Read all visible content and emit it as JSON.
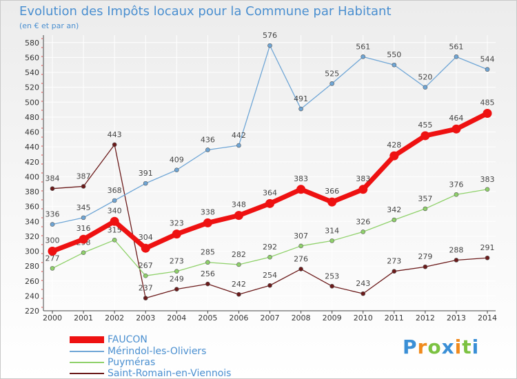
{
  "header": {
    "title": "Evolution des Impôts locaux pour la Commune par Habitant",
    "subtitle": "(en € et par an)"
  },
  "brand": {
    "text": "Proxiti"
  },
  "chart_data": {
    "type": "line",
    "title": "Evolution des Impôts locaux pour la Commune par Habitant",
    "subtitle": "(en € et par an)",
    "xlabel": "",
    "ylabel": "",
    "ylim": [
      220,
      590
    ],
    "yticks": [
      220,
      240,
      260,
      280,
      300,
      320,
      340,
      360,
      380,
      400,
      420,
      440,
      460,
      480,
      500,
      520,
      540,
      560,
      580
    ],
    "grid": true,
    "legend_position": "bottom-left",
    "x": [
      "2000",
      "2001",
      "2002",
      "2003",
      "2004",
      "2005",
      "2006",
      "2007",
      "2008",
      "2009",
      "2010",
      "2011",
      "2012",
      "2013",
      "2014"
    ],
    "series": [
      {
        "name": "Saint-Romain-en-Viennois",
        "color": "#6b1a1a",
        "values": [
          384,
          387,
          443,
          237,
          249,
          256,
          242,
          254,
          276,
          253,
          243,
          273,
          279,
          288,
          291
        ]
      },
      {
        "name": "Puyméras",
        "color": "#8fd16a",
        "values": [
          277,
          298,
          315,
          267,
          273,
          285,
          282,
          292,
          307,
          314,
          326,
          342,
          357,
          376,
          383
        ]
      },
      {
        "name": "Mérindol-les-Oliviers",
        "color": "#6fa6d6",
        "values": [
          336,
          345,
          368,
          391,
          409,
          436,
          442,
          576,
          491,
          525,
          561,
          550,
          520,
          561,
          544
        ]
      },
      {
        "name": "FAUCON",
        "color": "#ee1111",
        "values": [
          300,
          316,
          340,
          304,
          323,
          338,
          348,
          364,
          383,
          366,
          383,
          428,
          455,
          464,
          485
        ]
      }
    ]
  },
  "legend": [
    {
      "label": "FAUCON",
      "color": "#ee1111"
    },
    {
      "label": "Mérindol-les-Oliviers",
      "color": "#6fa6d6"
    },
    {
      "label": "Puyméras",
      "color": "#8fd16a"
    },
    {
      "label": "Saint-Romain-en-Viennois",
      "color": "#6b1a1a"
    }
  ]
}
